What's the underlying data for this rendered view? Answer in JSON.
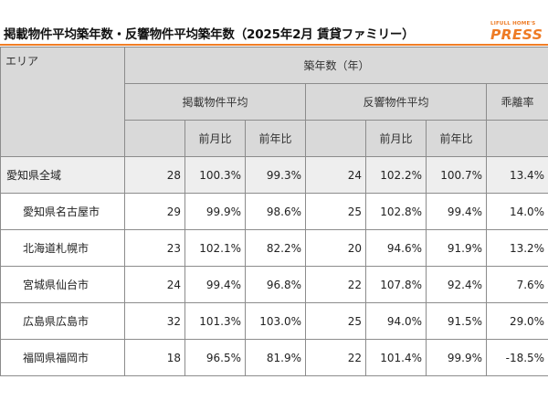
{
  "title": "掲載物件平均築年数・反響物件平均築年数（2025年2月 賃貸ファミリー）",
  "logo": {
    "line1": "LIFULL HOME'S",
    "line2": "PRESS",
    "color": "#ee7b25"
  },
  "headers": {
    "area": "エリア",
    "age": "築年数（年）",
    "listed_avg": "掲載物件平均",
    "inquiry_avg": "反響物件平均",
    "divergence": "乖離率",
    "mom": "前月比",
    "yoy": "前年比"
  },
  "rows": [
    {
      "area": "愛知県全域",
      "listed": "28",
      "listed_mom": "100.3%",
      "listed_yoy": "99.3%",
      "inquiry": "24",
      "inquiry_mom": "102.2%",
      "inquiry_yoy": "100.7%",
      "divergence": "13.4%"
    },
    {
      "area": "愛知県名古屋市",
      "listed": "29",
      "listed_mom": "99.9%",
      "listed_yoy": "98.6%",
      "inquiry": "25",
      "inquiry_mom": "102.8%",
      "inquiry_yoy": "99.4%",
      "divergence": "14.0%"
    },
    {
      "area": "北海道札幌市",
      "listed": "23",
      "listed_mom": "102.1%",
      "listed_yoy": "82.2%",
      "inquiry": "20",
      "inquiry_mom": "94.6%",
      "inquiry_yoy": "91.9%",
      "divergence": "13.2%"
    },
    {
      "area": "宮城県仙台市",
      "listed": "24",
      "listed_mom": "99.4%",
      "listed_yoy": "96.8%",
      "inquiry": "22",
      "inquiry_mom": "107.8%",
      "inquiry_yoy": "92.4%",
      "divergence": "7.6%"
    },
    {
      "area": "広島県広島市",
      "listed": "32",
      "listed_mom": "101.3%",
      "listed_yoy": "103.0%",
      "inquiry": "25",
      "inquiry_mom": "94.0%",
      "inquiry_yoy": "91.5%",
      "divergence": "29.0%"
    },
    {
      "area": "福岡県福岡市",
      "listed": "18",
      "listed_mom": "96.5%",
      "listed_yoy": "81.9%",
      "inquiry": "22",
      "inquiry_mom": "101.4%",
      "inquiry_yoy": "99.9%",
      "divergence": "-18.5%"
    }
  ]
}
